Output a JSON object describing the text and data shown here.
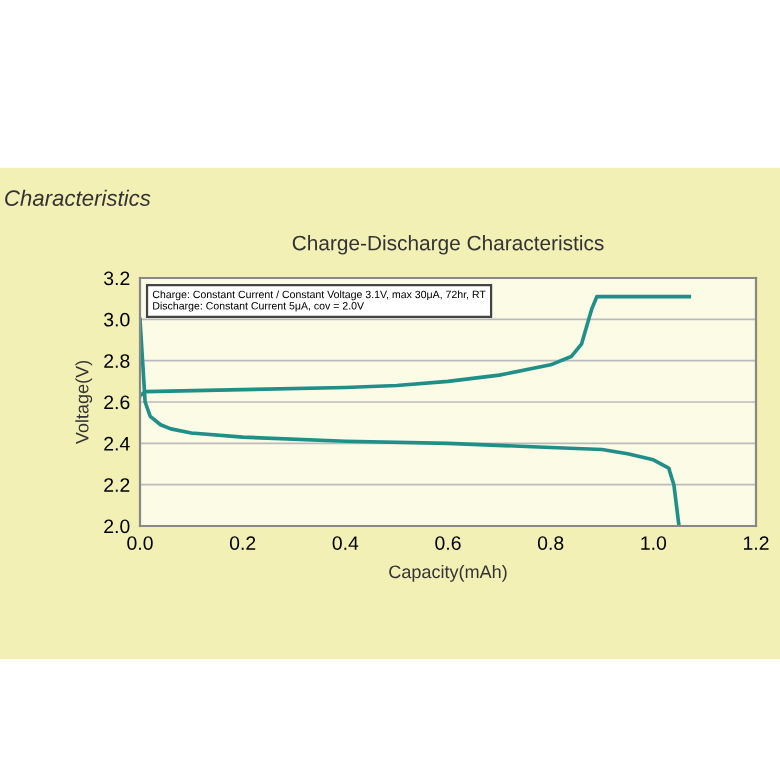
{
  "chart_data": {
    "type": "line",
    "title": "Charge-Discharge Characteristics",
    "xlabel": "Capacity(mAh)",
    "ylabel": "Voltage(V)",
    "annotations": [
      "Characteristics",
      "Charge: Constant Current / Constant Voltage 3.1V, max 30μA, 72hr, RT\nDischarge: Constant Current 5μA, cov = 2.0V"
    ],
    "series": [
      {
        "color": "#1f8f88",
        "x": [
          0.0,
          0.01,
          0.2,
          0.4,
          0.5,
          0.6,
          0.7,
          0.8,
          0.84,
          0.86,
          0.88,
          0.89,
          1.0,
          1.07
        ],
        "values": [
          2.63,
          2.65,
          2.66,
          2.67,
          2.68,
          2.7,
          2.73,
          2.78,
          2.82,
          2.88,
          3.05,
          3.11,
          3.11,
          3.11
        ]
      },
      {
        "color": "#1f8f88",
        "x": [
          0.0,
          0.005,
          0.01,
          0.02,
          0.04,
          0.06,
          0.1,
          0.2,
          0.4,
          0.6,
          0.8,
          0.9,
          0.95,
          1.0,
          1.03,
          1.04,
          1.045,
          1.05
        ],
        "values": [
          3.0,
          2.8,
          2.6,
          2.53,
          2.49,
          2.47,
          2.45,
          2.43,
          2.41,
          2.4,
          2.38,
          2.37,
          2.35,
          2.32,
          2.28,
          2.2,
          2.1,
          2.0
        ]
      }
    ],
    "xlim": [
      0,
      1.2
    ],
    "xticks": [
      {
        "value": 0,
        "label": "0.0"
      },
      {
        "value": 0.2,
        "label": "0.2"
      },
      {
        "value": 0.4,
        "label": "0.4"
      },
      {
        "value": 0.6,
        "label": "0.6"
      },
      {
        "value": 0.8,
        "label": "0.8"
      },
      {
        "value": 1,
        "label": "1.0"
      },
      {
        "value": 1.2,
        "label": "1.2"
      }
    ],
    "ylim": [
      2.0,
      3.2
    ],
    "yticks": [
      {
        "value": 2.0,
        "label": "2.0"
      },
      {
        "value": 2.2,
        "label": "2.2"
      },
      {
        "value": 2.4,
        "label": "2.4"
      },
      {
        "value": 2.6,
        "label": "2.6"
      },
      {
        "value": 2.8,
        "label": "2.8"
      },
      {
        "value": 3.0,
        "label": "3.0"
      },
      {
        "value": 3.2,
        "label": "3.2"
      }
    ],
    "grid": "y",
    "legend": false,
    "marker": "none",
    "line_style": "solid"
  }
}
